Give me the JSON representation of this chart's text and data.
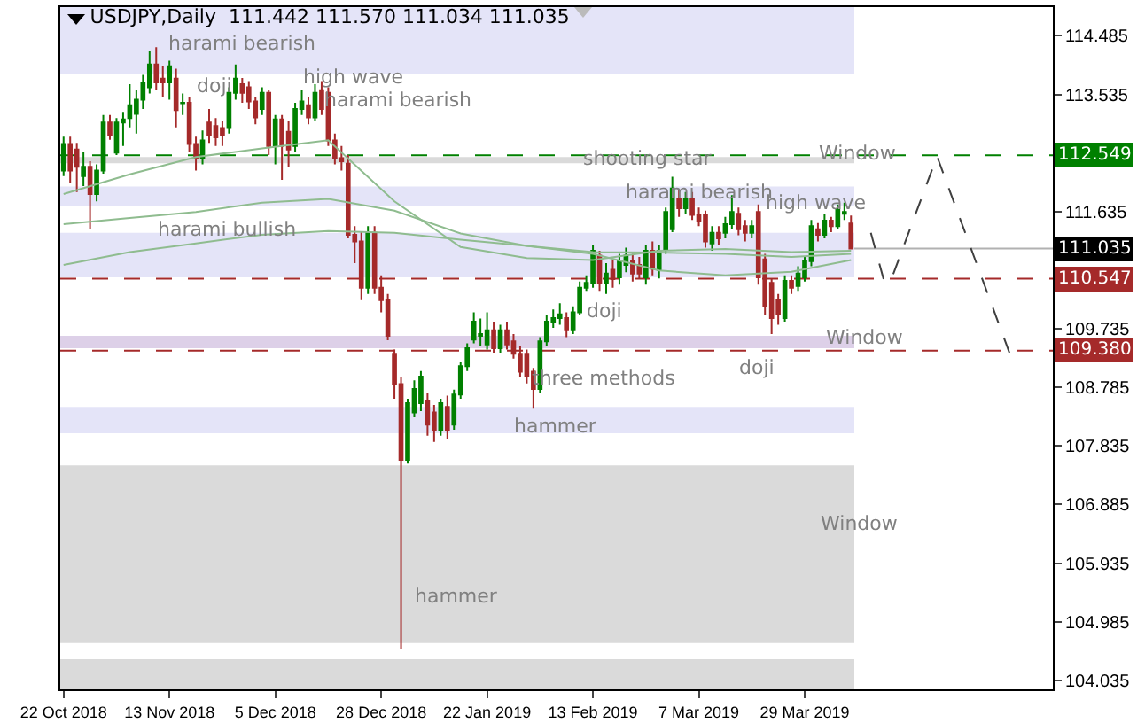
{
  "chart_data": {
    "type": "candlestick",
    "title": "USDJPY,Daily  111.442 111.570 111.034 111.035",
    "categories": [
      "22 Oct 2018",
      null,
      null,
      null,
      null,
      null,
      null,
      null,
      null,
      null,
      null,
      null,
      null,
      null,
      null,
      null,
      "13 Nov 2018",
      null,
      null,
      null,
      null,
      null,
      null,
      null,
      null,
      null,
      null,
      null,
      null,
      null,
      null,
      null,
      "5 Dec 2018",
      null,
      null,
      null,
      null,
      null,
      null,
      null,
      null,
      null,
      null,
      null,
      null,
      null,
      null,
      null,
      "28 Dec 2018",
      null,
      null,
      null,
      null,
      null,
      null,
      null,
      null,
      null,
      null,
      null,
      null,
      null,
      null,
      null,
      "22 Jan 2019",
      null,
      null,
      null,
      null,
      null,
      null,
      null,
      null,
      null,
      null,
      null,
      null,
      null,
      null,
      null,
      "13 Feb 2019",
      null,
      null,
      null,
      null,
      null,
      null,
      null,
      null,
      null,
      null,
      null,
      null,
      null,
      null,
      null,
      "7 Mar 2019",
      null,
      null,
      null,
      null,
      null,
      null,
      null,
      null,
      null,
      null,
      null,
      null,
      null,
      null,
      null,
      "29 Mar 2019",
      null,
      null,
      null,
      null,
      null,
      null,
      null,
      null,
      null,
      null,
      null,
      null,
      null,
      null,
      null,
      null,
      null,
      null,
      null,
      null,
      null,
      null,
      null,
      null,
      null,
      null,
      null,
      null,
      null,
      null,
      null,
      null,
      null,
      null,
      null,
      null,
      null
    ],
    "ohlc": [
      [
        112.3,
        112.85,
        112.21,
        112.73
      ],
      [
        112.73,
        112.85,
        112.1,
        112.3
      ],
      [
        112.64,
        112.75,
        111.95,
        112.36
      ],
      [
        112.21,
        112.6,
        112.05,
        112.36
      ],
      [
        112.36,
        112.45,
        111.35,
        111.92
      ],
      [
        111.92,
        112.4,
        111.8,
        112.3
      ],
      [
        112.3,
        113.2,
        112.25,
        113.08
      ],
      [
        113.08,
        113.2,
        112.8,
        112.87
      ],
      [
        112.59,
        113.15,
        112.55,
        113.08
      ],
      [
        113.08,
        113.25,
        112.7,
        113.13
      ],
      [
        113.15,
        113.7,
        113.0,
        113.36
      ],
      [
        113.22,
        113.6,
        112.9,
        113.45
      ],
      [
        113.45,
        113.85,
        113.3,
        113.73
      ],
      [
        113.65,
        114.23,
        113.55,
        114.02
      ],
      [
        114.02,
        114.3,
        113.6,
        113.73
      ],
      [
        113.79,
        114.0,
        113.5,
        113.73
      ],
      [
        113.73,
        114.08,
        113.45,
        113.99
      ],
      [
        113.79,
        113.95,
        113.0,
        113.28
      ],
      [
        113.39,
        113.55,
        113.2,
        113.4
      ],
      [
        113.4,
        113.5,
        112.6,
        112.73
      ],
      [
        112.73,
        112.85,
        112.3,
        112.5
      ],
      [
        112.5,
        112.95,
        112.4,
        112.79
      ],
      [
        113.08,
        113.3,
        112.75,
        112.87
      ],
      [
        113.02,
        113.15,
        112.7,
        112.84
      ],
      [
        112.99,
        113.1,
        112.7,
        112.87
      ],
      [
        112.99,
        113.65,
        112.9,
        113.56
      ],
      [
        113.56,
        114.02,
        113.45,
        113.79
      ],
      [
        113.7,
        113.8,
        113.4,
        113.56
      ],
      [
        113.65,
        113.75,
        113.3,
        113.42
      ],
      [
        113.42,
        113.5,
        113.05,
        113.16
      ],
      [
        113.3,
        113.65,
        113.2,
        113.56
      ],
      [
        113.56,
        113.6,
        112.55,
        112.7
      ],
      [
        112.7,
        113.2,
        112.4,
        113.13
      ],
      [
        113.13,
        113.2,
        112.15,
        112.7
      ],
      [
        112.93,
        113.1,
        112.35,
        112.64
      ],
      [
        112.7,
        113.4,
        112.6,
        113.3
      ],
      [
        113.3,
        113.6,
        113.2,
        113.42
      ],
      [
        113.36,
        113.5,
        113.05,
        113.16
      ],
      [
        113.16,
        113.7,
        113.1,
        113.56
      ],
      [
        113.59,
        113.75,
        113.2,
        113.3
      ],
      [
        113.56,
        113.65,
        112.7,
        112.79
      ],
      [
        112.79,
        112.9,
        112.4,
        112.5
      ],
      [
        112.5,
        112.7,
        112.3,
        112.45
      ],
      [
        112.41,
        112.55,
        111.2,
        111.26
      ],
      [
        111.26,
        111.4,
        110.8,
        111.15
      ],
      [
        111.15,
        111.3,
        110.2,
        110.4
      ],
      [
        110.4,
        111.4,
        110.3,
        111.29
      ],
      [
        111.29,
        111.4,
        110.3,
        110.4
      ],
      [
        110.4,
        110.6,
        110.0,
        110.2
      ],
      [
        110.2,
        110.3,
        109.55,
        109.62
      ],
      [
        109.33,
        109.4,
        108.6,
        108.84
      ],
      [
        108.84,
        108.95,
        104.55,
        107.61
      ],
      [
        107.61,
        108.6,
        107.55,
        108.53
      ],
      [
        108.38,
        108.9,
        108.3,
        108.76
      ],
      [
        108.53,
        109.05,
        108.4,
        108.96
      ],
      [
        108.56,
        108.7,
        108.0,
        108.18
      ],
      [
        108.38,
        108.5,
        107.9,
        108.09
      ],
      [
        108.09,
        108.6,
        108.0,
        108.53
      ],
      [
        108.47,
        108.65,
        107.95,
        108.09
      ],
      [
        108.18,
        108.75,
        108.1,
        108.67
      ],
      [
        108.67,
        109.2,
        108.6,
        109.13
      ],
      [
        109.13,
        109.5,
        109.05,
        109.42
      ],
      [
        109.56,
        110.0,
        109.5,
        109.85
      ],
      [
        109.62,
        109.9,
        109.45,
        109.65
      ],
      [
        109.48,
        110.0,
        109.4,
        109.71
      ],
      [
        109.71,
        109.85,
        109.35,
        109.42
      ],
      [
        109.42,
        109.8,
        109.35,
        109.71
      ],
      [
        109.71,
        109.85,
        109.4,
        109.48
      ],
      [
        109.53,
        109.65,
        109.25,
        109.33
      ],
      [
        109.33,
        109.45,
        108.95,
        109.04
      ],
      [
        109.33,
        109.4,
        108.85,
        108.96
      ],
      [
        109.04,
        109.1,
        108.44,
        108.76
      ],
      [
        108.76,
        109.6,
        108.7,
        109.53
      ],
      [
        109.53,
        109.95,
        109.45,
        109.85
      ],
      [
        109.85,
        110.05,
        109.75,
        109.91
      ],
      [
        109.91,
        110.15,
        109.8,
        109.97
      ],
      [
        109.91,
        110.0,
        109.6,
        109.71
      ],
      [
        109.71,
        110.1,
        109.65,
        110.0
      ],
      [
        110.0,
        110.5,
        109.95,
        110.4
      ],
      [
        110.4,
        110.6,
        110.35,
        110.48
      ],
      [
        110.48,
        111.1,
        110.4,
        111.0
      ],
      [
        110.92,
        111.0,
        110.35,
        110.48
      ],
      [
        110.48,
        110.8,
        110.3,
        110.63
      ],
      [
        110.69,
        110.85,
        110.4,
        110.54
      ],
      [
        110.57,
        110.95,
        110.45,
        110.83
      ],
      [
        110.77,
        111.05,
        110.65,
        110.92
      ],
      [
        110.83,
        110.95,
        110.5,
        110.63
      ],
      [
        110.77,
        110.9,
        110.55,
        110.63
      ],
      [
        110.57,
        111.1,
        110.45,
        111.0
      ],
      [
        111.0,
        111.15,
        110.6,
        110.71
      ],
      [
        110.69,
        111.1,
        110.55,
        111.0
      ],
      [
        111.03,
        111.7,
        110.95,
        111.63
      ],
      [
        111.35,
        112.2,
        111.3,
        112.01
      ],
      [
        111.84,
        112.0,
        111.55,
        111.69
      ],
      [
        111.69,
        111.95,
        111.6,
        111.84
      ],
      [
        111.84,
        111.95,
        111.5,
        111.58
      ],
      [
        111.58,
        111.7,
        111.4,
        111.49
      ],
      [
        111.58,
        111.65,
        111.05,
        111.15
      ],
      [
        111.12,
        111.4,
        111.0,
        111.29
      ],
      [
        111.29,
        111.4,
        111.1,
        111.2
      ],
      [
        111.29,
        111.55,
        111.2,
        111.43
      ],
      [
        111.43,
        111.9,
        111.35,
        111.63
      ],
      [
        111.6,
        111.7,
        111.25,
        111.35
      ],
      [
        111.4,
        111.5,
        111.15,
        111.29
      ],
      [
        111.29,
        111.5,
        111.2,
        111.4
      ],
      [
        111.63,
        111.75,
        110.45,
        110.57
      ],
      [
        110.86,
        110.95,
        109.95,
        110.11
      ],
      [
        110.48,
        110.55,
        109.65,
        109.91
      ],
      [
        110.2,
        110.3,
        109.8,
        109.97
      ],
      [
        109.91,
        110.6,
        109.85,
        110.51
      ],
      [
        110.51,
        110.6,
        110.3,
        110.4
      ],
      [
        110.43,
        110.75,
        110.35,
        110.63
      ],
      [
        110.57,
        110.9,
        110.5,
        110.83
      ],
      [
        110.83,
        111.5,
        110.75,
        111.4
      ],
      [
        111.35,
        111.45,
        111.15,
        111.26
      ],
      [
        111.26,
        111.6,
        111.2,
        111.49
      ],
      [
        111.49,
        111.55,
        111.3,
        111.4
      ],
      [
        111.4,
        111.75,
        111.35,
        111.66
      ],
      [
        111.6,
        111.78,
        111.5,
        111.63
      ],
      [
        111.442,
        111.57,
        111.034,
        111.035
      ],
      null,
      null,
      null,
      null,
      null,
      null,
      null,
      null,
      null,
      null,
      null,
      null,
      null,
      null,
      null,
      null,
      null,
      null,
      null,
      null,
      null,
      null,
      null,
      null,
      null,
      null,
      null,
      null,
      null,
      null
    ],
    "colors": [
      "#008000",
      "#a52a2a",
      "#a52a2a",
      "#008000",
      "#a52a2a",
      "#008000",
      "#008000",
      "#a52a2a",
      "#008000",
      "#008000",
      "#008000",
      "#008000",
      "#008000",
      "#008000",
      "#a52a2a",
      "#a52a2a",
      "#008000",
      "#a52a2a",
      "#008000",
      "#a52a2a",
      "#a52a2a",
      "#008000",
      "#a52a2a",
      "#a52a2a",
      "#a52a2a",
      "#008000",
      "#008000",
      "#a52a2a",
      "#a52a2a",
      "#a52a2a",
      "#008000",
      "#a52a2a",
      "#008000",
      "#a52a2a",
      "#a52a2a",
      "#008000",
      "#008000",
      "#a52a2a",
      "#008000",
      "#a52a2a",
      "#a52a2a",
      "#a52a2a",
      "#a52a2a",
      "#a52a2a",
      "#a52a2a",
      "#a52a2a",
      "#008000",
      "#a52a2a",
      "#a52a2a",
      "#a52a2a",
      "#a52a2a",
      "#a52a2a",
      "#008000",
      "#008000",
      "#008000",
      "#a52a2a",
      "#a52a2a",
      "#008000",
      "#a52a2a",
      "#008000",
      "#008000",
      "#008000",
      "#008000",
      "#008000",
      "#008000",
      "#a52a2a",
      "#008000",
      "#a52a2a",
      "#a52a2a",
      "#a52a2a",
      "#a52a2a",
      "#a52a2a",
      "#008000",
      "#008000",
      "#008000",
      "#008000",
      "#a52a2a",
      "#008000",
      "#008000",
      "#008000",
      "#008000",
      "#a52a2a",
      "#008000",
      "#a52a2a",
      "#008000",
      "#008000",
      "#a52a2a",
      "#a52a2a",
      "#008000",
      "#a52a2a",
      "#008000",
      "#008000",
      "#008000",
      "#a52a2a",
      "#008000",
      "#a52a2a",
      "#a52a2a",
      "#a52a2a",
      "#008000",
      "#a52a2a",
      "#008000",
      "#008000",
      "#a52a2a",
      "#a52a2a",
      "#008000",
      "#a52a2a",
      "#a52a2a",
      "#a52a2a",
      "#a52a2a",
      "#008000",
      "#a52a2a",
      "#008000",
      "#008000",
      "#008000",
      "#a52a2a",
      "#008000",
      "#a52a2a",
      "#008000",
      "#008000",
      "#a52a2a",
      null,
      null,
      null,
      null,
      null,
      null,
      null,
      null,
      null,
      null,
      null,
      null,
      null,
      null,
      null,
      null,
      null,
      null,
      null,
      null,
      null,
      null,
      null,
      null,
      null,
      null,
      null,
      null,
      null,
      null
    ],
    "series": [
      {
        "type": "line",
        "color": "#8fbc8f",
        "values": [
          111.92,
          null,
          null,
          null,
          null,
          null,
          null,
          null,
          null,
          null,
          112.24,
          null,
          null,
          null,
          null,
          null,
          null,
          null,
          null,
          null,
          112.52,
          null,
          null,
          null,
          null,
          null,
          null,
          null,
          null,
          null,
          112.66,
          null,
          null,
          null,
          null,
          null,
          null,
          null,
          null,
          null,
          112.79,
          null,
          null,
          null,
          null,
          null,
          null,
          null,
          null,
          null,
          111.8,
          null,
          null,
          null,
          null,
          null,
          null,
          null,
          null,
          null,
          111.06,
          null,
          null,
          null,
          null,
          null,
          null,
          null,
          null,
          null,
          110.88,
          null,
          null,
          null,
          null,
          null,
          null,
          null,
          null,
          null,
          110.85,
          null,
          null,
          null,
          null,
          null,
          null,
          null,
          null,
          null,
          111.0,
          null,
          null,
          null,
          null,
          null,
          null,
          null,
          null,
          null,
          111.03,
          null,
          null,
          null,
          null,
          null,
          null,
          null,
          null,
          null,
          110.98,
          null,
          null,
          null,
          null,
          null,
          null,
          null,
          null,
          111.0,
          null,
          null,
          null,
          null,
          null,
          null,
          null,
          null,
          null,
          null,
          null,
          null,
          null,
          null,
          null,
          null,
          null,
          null,
          null,
          null,
          null,
          null,
          null,
          null,
          null,
          null,
          null,
          null,
          null,
          null
        ]
      },
      {
        "type": "line",
        "color": "#8fbc8f",
        "values": [
          111.43,
          null,
          null,
          null,
          null,
          null,
          null,
          null,
          null,
          null,
          111.53,
          null,
          null,
          null,
          null,
          null,
          null,
          null,
          null,
          null,
          111.63,
          null,
          null,
          null,
          null,
          null,
          null,
          null,
          null,
          null,
          111.78,
          null,
          null,
          null,
          null,
          null,
          null,
          null,
          null,
          null,
          111.84,
          null,
          null,
          null,
          null,
          null,
          null,
          null,
          null,
          null,
          111.65,
          null,
          null,
          null,
          null,
          null,
          null,
          null,
          null,
          null,
          111.28,
          null,
          null,
          null,
          null,
          null,
          null,
          null,
          null,
          null,
          111.08,
          null,
          null,
          null,
          null,
          null,
          null,
          null,
          null,
          null,
          110.98,
          null,
          null,
          null,
          null,
          null,
          null,
          null,
          null,
          null,
          110.97,
          null,
          null,
          null,
          null,
          null,
          null,
          null,
          null,
          null,
          110.95,
          null,
          null,
          null,
          null,
          null,
          null,
          null,
          null,
          null,
          110.9,
          null,
          null,
          null,
          null,
          null,
          null,
          null,
          null,
          110.95,
          null,
          null,
          null,
          null,
          null,
          null,
          null,
          null,
          null,
          null,
          null,
          null,
          null,
          null,
          null,
          null,
          null,
          null,
          null,
          null,
          null,
          null,
          null,
          null,
          null,
          null,
          null,
          null,
          null,
          null
        ]
      },
      {
        "type": "line",
        "color": "#8fbc8f",
        "values": [
          110.77,
          null,
          null,
          null,
          null,
          null,
          null,
          null,
          null,
          null,
          110.98,
          null,
          null,
          null,
          null,
          null,
          null,
          null,
          null,
          null,
          111.12,
          null,
          null,
          null,
          null,
          null,
          null,
          null,
          null,
          null,
          111.26,
          null,
          null,
          null,
          null,
          null,
          null,
          null,
          null,
          null,
          111.32,
          null,
          null,
          null,
          null,
          null,
          null,
          null,
          null,
          null,
          111.29,
          null,
          null,
          null,
          null,
          null,
          null,
          null,
          null,
          null,
          111.18,
          null,
          null,
          null,
          null,
          null,
          null,
          null,
          null,
          null,
          111.08,
          null,
          null,
          null,
          null,
          null,
          null,
          null,
          null,
          null,
          110.95,
          null,
          null,
          null,
          null,
          null,
          null,
          null,
          null,
          null,
          110.68,
          null,
          null,
          null,
          null,
          null,
          null,
          null,
          null,
          null,
          110.6,
          null,
          null,
          null,
          null,
          null,
          null,
          null,
          null,
          null,
          110.66,
          null,
          null,
          null,
          null,
          null,
          null,
          null,
          null,
          110.85,
          null,
          null,
          null,
          null,
          null,
          null,
          null,
          null,
          null,
          null,
          null,
          null,
          null,
          null,
          null,
          null,
          null,
          null,
          null,
          null,
          null,
          null,
          null,
          null,
          null,
          null,
          null,
          null,
          null,
          null
        ]
      },
      {
        "type": "line",
        "color": "#404040",
        "line_style": "dashed",
        "values": [
          null,
          null,
          null,
          null,
          null,
          null,
          null,
          null,
          null,
          null,
          null,
          null,
          null,
          null,
          null,
          null,
          null,
          null,
          null,
          null,
          null,
          null,
          null,
          null,
          null,
          null,
          null,
          null,
          null,
          null,
          null,
          null,
          null,
          null,
          null,
          null,
          null,
          null,
          null,
          null,
          null,
          null,
          null,
          null,
          null,
          null,
          null,
          null,
          null,
          null,
          null,
          null,
          null,
          null,
          null,
          null,
          null,
          null,
          null,
          null,
          null,
          null,
          null,
          null,
          null,
          null,
          null,
          null,
          null,
          null,
          null,
          null,
          null,
          null,
          null,
          null,
          null,
          null,
          null,
          null,
          null,
          null,
          null,
          null,
          null,
          null,
          null,
          null,
          null,
          null,
          null,
          null,
          null,
          null,
          null,
          null,
          null,
          null,
          null,
          null,
          null,
          null,
          null,
          null,
          null,
          null,
          null,
          null,
          null,
          null,
          null,
          null,
          null,
          null,
          null,
          null,
          null,
          null,
          null,
          null,
          null,
          null,
          111.29,
          null,
          110.51,
          110.51,
          null,
          null,
          null,
          null,
          null,
          null,
          112.53,
          null,
          null,
          null,
          null,
          null,
          null,
          null,
          null,
          null,
          null,
          109.33,
          null,
          null,
          null,
          null,
          null,
          null
        ]
      }
    ],
    "ylim": [
      103.89,
      114.95
    ],
    "yticks": [
      104.035,
      104.985,
      105.935,
      106.885,
      107.835,
      108.785,
      109.735,
      {
        "value": 110.685,
        "label": null
      },
      111.635,
      {
        "value": 112.585,
        "label": null
      },
      113.535,
      114.485
    ],
    "ref_lines": [
      {
        "axis": "y",
        "value": 112.549,
        "label": "112.549",
        "color": "#008000",
        "line_style": "dashed"
      },
      {
        "axis": "y",
        "value": 111.035,
        "label": "111.035",
        "color": "#000000",
        "line_style": "solid"
      },
      {
        "axis": "y",
        "value": 110.547,
        "label": "110.547",
        "color": "#a52a2a",
        "line_style": "dashed"
      },
      {
        "axis": "y",
        "value": 109.38,
        "label": "109.380",
        "color": "#a52a2a",
        "line_style": "dashed"
      }
    ],
    "bands": [
      {
        "axis": "y",
        "from": 113.87,
        "to": 114.95,
        "color": "#e4e4f8"
      },
      {
        "axis": "y",
        "from": 112.42,
        "to": 112.52,
        "color": "#dadada"
      },
      {
        "axis": "y",
        "from": 111.72,
        "to": 112.04,
        "color": "#e4e4f8"
      },
      {
        "axis": "y",
        "from": 110.57,
        "to": 111.29,
        "color": "#e4e4f8"
      },
      {
        "axis": "y",
        "from": 109.42,
        "to": 109.62,
        "color": "#ddd0e8"
      },
      {
        "axis": "y",
        "from": 108.04,
        "to": 108.47,
        "color": "#e4e4f8"
      },
      {
        "axis": "y",
        "from": 104.64,
        "to": 107.52,
        "color": "#dadada"
      },
      {
        "axis": "y",
        "from": 103.89,
        "to": 104.38,
        "color": "#dadada"
      }
    ],
    "annotations": [
      "harami bearish",
      "doji",
      "high wave",
      "harami bearish",
      "harami bullish",
      "shooting star",
      "harami bearish",
      "high wave",
      "Window",
      "doji",
      "Window",
      "three methods",
      "doji",
      "hammer",
      "Window",
      "hammer"
    ],
    "marker": "none",
    "line_style": "solid"
  }
}
